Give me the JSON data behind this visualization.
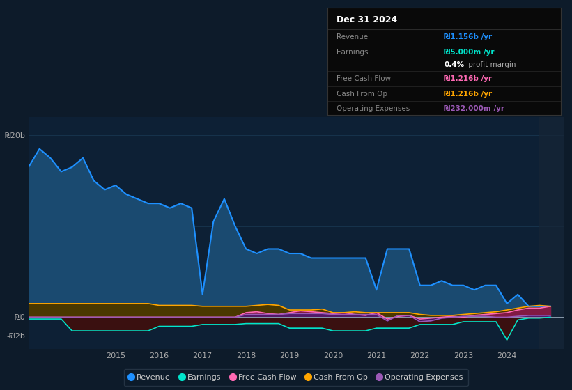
{
  "bg_color": "#0d1b2a",
  "chart_area_bg": "#0d2035",
  "grid_color": "#1a3a55",
  "years": [
    2013.0,
    2013.25,
    2013.5,
    2013.75,
    2014.0,
    2014.25,
    2014.5,
    2014.75,
    2015.0,
    2015.25,
    2015.5,
    2015.75,
    2016.0,
    2016.25,
    2016.5,
    2016.75,
    2017.0,
    2017.25,
    2017.5,
    2017.75,
    2018.0,
    2018.25,
    2018.5,
    2018.75,
    2019.0,
    2019.25,
    2019.5,
    2019.75,
    2020.0,
    2020.25,
    2020.5,
    2020.75,
    2021.0,
    2021.25,
    2021.5,
    2021.75,
    2022.0,
    2022.25,
    2022.5,
    2022.75,
    2023.0,
    2023.25,
    2023.5,
    2023.75,
    2024.0,
    2024.25,
    2024.5,
    2024.75,
    2025.0
  ],
  "revenue": [
    16.5,
    18.5,
    17.5,
    16.0,
    16.5,
    17.5,
    15.0,
    14.0,
    14.5,
    13.5,
    13.0,
    12.5,
    12.5,
    12.0,
    12.5,
    12.0,
    2.5,
    10.5,
    13.0,
    10.0,
    7.5,
    7.0,
    7.5,
    7.5,
    7.0,
    7.0,
    6.5,
    6.5,
    6.5,
    6.5,
    6.5,
    6.5,
    3.0,
    7.5,
    7.5,
    7.5,
    3.5,
    3.5,
    4.0,
    3.5,
    3.5,
    3.0,
    3.5,
    3.5,
    1.5,
    2.5,
    1.2,
    1.2,
    1.2
  ],
  "earnings": [
    -0.2,
    -0.2,
    -0.2,
    -0.2,
    -1.5,
    -1.5,
    -1.5,
    -1.5,
    -1.5,
    -1.5,
    -1.5,
    -1.5,
    -1.0,
    -1.0,
    -1.0,
    -1.0,
    -0.8,
    -0.8,
    -0.8,
    -0.8,
    -0.7,
    -0.7,
    -0.7,
    -0.7,
    -1.2,
    -1.2,
    -1.2,
    -1.2,
    -1.5,
    -1.5,
    -1.5,
    -1.5,
    -1.2,
    -1.2,
    -1.2,
    -1.2,
    -0.8,
    -0.8,
    -0.8,
    -0.8,
    -0.5,
    -0.5,
    -0.5,
    -0.5,
    -2.5,
    -0.3,
    -0.1,
    -0.1,
    0.005
  ],
  "free_cash_flow": [
    0.0,
    0.0,
    0.0,
    0.0,
    0.0,
    0.0,
    0.0,
    0.0,
    0.0,
    0.0,
    0.0,
    0.0,
    0.0,
    0.0,
    0.0,
    0.0,
    0.0,
    0.0,
    0.0,
    0.0,
    0.5,
    0.6,
    0.4,
    0.3,
    0.5,
    0.7,
    0.6,
    0.5,
    0.4,
    0.5,
    0.3,
    0.2,
    0.5,
    -0.2,
    0.1,
    0.2,
    -0.2,
    -0.1,
    0.0,
    0.1,
    0.0,
    0.2,
    0.3,
    0.4,
    0.5,
    0.8,
    1.0,
    1.0,
    1.2
  ],
  "cash_from_op": [
    1.5,
    1.5,
    1.5,
    1.5,
    1.5,
    1.5,
    1.5,
    1.5,
    1.5,
    1.5,
    1.5,
    1.5,
    1.3,
    1.3,
    1.3,
    1.3,
    1.2,
    1.2,
    1.2,
    1.2,
    1.2,
    1.3,
    1.4,
    1.3,
    0.8,
    0.8,
    0.8,
    0.9,
    0.5,
    0.5,
    0.6,
    0.5,
    0.5,
    0.5,
    0.5,
    0.5,
    0.3,
    0.2,
    0.2,
    0.2,
    0.3,
    0.4,
    0.5,
    0.6,
    0.8,
    1.0,
    1.2,
    1.3,
    1.2
  ],
  "operating_expenses": [
    0.0,
    0.0,
    0.0,
    0.0,
    0.0,
    0.0,
    0.0,
    0.0,
    0.0,
    0.0,
    0.0,
    0.0,
    0.0,
    0.0,
    0.0,
    0.0,
    0.0,
    0.0,
    0.0,
    0.0,
    0.3,
    0.3,
    0.3,
    0.3,
    0.4,
    0.4,
    0.4,
    0.4,
    0.3,
    0.3,
    0.3,
    0.3,
    0.3,
    -0.4,
    0.2,
    0.2,
    -0.5,
    -0.4,
    -0.1,
    0.0,
    0.1,
    0.1,
    0.1,
    0.0,
    0.0,
    0.1,
    0.2,
    0.2,
    0.2
  ],
  "revenue_color": "#1e90ff",
  "earnings_color": "#00e5cc",
  "free_cash_flow_color": "#ff69b4",
  "cash_from_op_color": "#ffa500",
  "operating_expenses_color": "#9b59b6",
  "revenue_fill_color": "#1a4a70",
  "earnings_fill_color": "#3a1010",
  "free_cash_flow_fill_color": "#8b1550",
  "cash_from_op_fill_color": "#4a3800",
  "operating_expenses_fill_color": "#4a1870",
  "ylim": [
    -3.5,
    22.0
  ],
  "xlim": [
    2013.0,
    2025.3
  ],
  "xtick_years": [
    2015,
    2016,
    2017,
    2018,
    2019,
    2020,
    2021,
    2022,
    2023,
    2024
  ],
  "legend_items": [
    {
      "label": "Revenue",
      "color": "#1e90ff"
    },
    {
      "label": "Earnings",
      "color": "#00e5cc"
    },
    {
      "label": "Free Cash Flow",
      "color": "#ff69b4"
    },
    {
      "label": "Cash From Op",
      "color": "#ffa500"
    },
    {
      "label": "Operating Expenses",
      "color": "#9b59b6"
    }
  ],
  "info_box": {
    "title": "Dec 31 2024",
    "rows": [
      {
        "label": "Revenue",
        "value": "₪1.156b /yr",
        "value_color": "#1e90ff"
      },
      {
        "label": "Earnings",
        "value": "₪5.000m /yr",
        "value_color": "#00e5cc"
      },
      {
        "label": "",
        "value": "0.4% profit margin",
        "value_color": "#ffffff"
      },
      {
        "label": "Free Cash Flow",
        "value": "₪1.216b /yr",
        "value_color": "#ff69b4"
      },
      {
        "label": "Cash From Op",
        "value": "₪1.216b /yr",
        "value_color": "#ffa500"
      },
      {
        "label": "Operating Expenses",
        "value": "₪232.000m /yr",
        "value_color": "#9b59b6"
      }
    ],
    "bg_color": "#090909",
    "border_color": "#333333",
    "text_color": "#888888",
    "title_color": "#ffffff"
  }
}
